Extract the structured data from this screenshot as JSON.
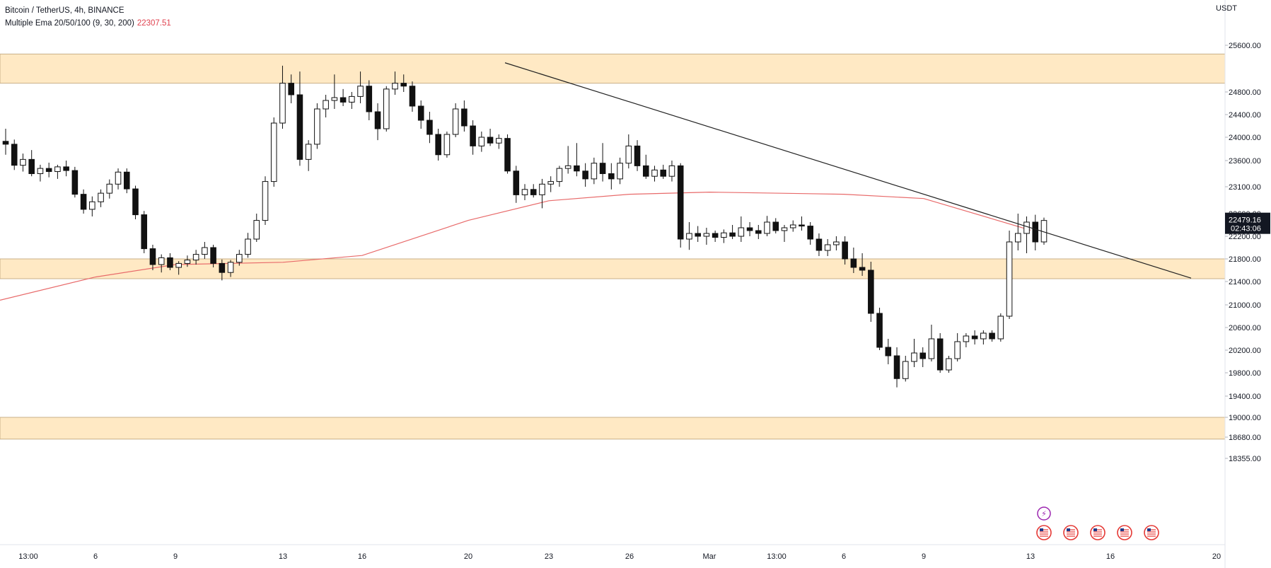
{
  "legend": {
    "symbol": "Bitcoin / TetherUS, 4h, BINANCE",
    "indicator": "Multiple Ema 20/50/100 (9, 30, 200)",
    "indicator_value": "22307.51"
  },
  "price_axis": {
    "unit": "USDT",
    "ticks": [
      "25600.00",
      "24800.00",
      "24400.00",
      "24000.00",
      "23600.00",
      "23100.00",
      "22600.00",
      "22200.00",
      "21800.00",
      "21400.00",
      "21000.00",
      "20600.00",
      "20200.00",
      "19800.00",
      "19400.00",
      "19000.00",
      "18680.00",
      "18355.00"
    ],
    "last_price": "22479.16",
    "countdown": "02:43:06"
  },
  "time_axis": {
    "labels": [
      "13:00",
      "6",
      "9",
      "13",
      "16",
      "20",
      "23",
      "26",
      "Mar",
      "13:00",
      "6",
      "9",
      "13",
      "16",
      "20"
    ]
  },
  "colors": {
    "zone_fill": "#ffe9c4",
    "zone_border": "#c8b089",
    "ema": "#e86a6a",
    "candle": "#111111",
    "trendline": "#222222",
    "price_label_bg": "#131722"
  },
  "chart_data": {
    "type": "candlestick",
    "title": "Bitcoin / TetherUS, 4h, BINANCE",
    "y_range": [
      18355,
      25600
    ],
    "zones": [
      {
        "low": 24950,
        "high": 25450
      },
      {
        "low": 21450,
        "high": 21800
      },
      {
        "low": 18650,
        "high": 19000
      }
    ],
    "trendline": {
      "from": {
        "date": "Feb 21",
        "price": 25300
      },
      "to": {
        "date": "Mar 19",
        "price": 21460
      }
    },
    "ema_200": [
      {
        "date": "Feb 3",
        "price": 21080
      },
      {
        "date": "Feb 6",
        "price": 21480
      },
      {
        "date": "Feb 9",
        "price": 21700
      },
      {
        "date": "Feb 13",
        "price": 21740
      },
      {
        "date": "Feb 16",
        "price": 21860
      },
      {
        "date": "Feb 20",
        "price": 22480
      },
      {
        "date": "Feb 23",
        "price": 22840
      },
      {
        "date": "Feb 26",
        "price": 22960
      },
      {
        "date": "Mar 1",
        "price": 23000
      },
      {
        "date": "Mar 6",
        "price": 22960
      },
      {
        "date": "Mar 9",
        "price": 22880
      },
      {
        "date": "Mar 13",
        "price": 22307.51
      }
    ],
    "candles": [
      {
        "o": 23930,
        "h": 24150,
        "l": 23700,
        "c": 23880
      },
      {
        "o": 23880,
        "h": 23960,
        "l": 23420,
        "c": 23510
      },
      {
        "o": 23510,
        "h": 23720,
        "l": 23390,
        "c": 23620
      },
      {
        "o": 23620,
        "h": 23780,
        "l": 23300,
        "c": 23350
      },
      {
        "o": 23350,
        "h": 23520,
        "l": 23200,
        "c": 23450
      },
      {
        "o": 23450,
        "h": 23560,
        "l": 23280,
        "c": 23390
      },
      {
        "o": 23390,
        "h": 23520,
        "l": 23250,
        "c": 23480
      },
      {
        "o": 23480,
        "h": 23600,
        "l": 23300,
        "c": 23410
      },
      {
        "o": 23410,
        "h": 23480,
        "l": 22900,
        "c": 22960
      },
      {
        "o": 22960,
        "h": 23050,
        "l": 22600,
        "c": 22680
      },
      {
        "o": 22680,
        "h": 22920,
        "l": 22550,
        "c": 22820
      },
      {
        "o": 22820,
        "h": 23050,
        "l": 22720,
        "c": 22980
      },
      {
        "o": 22980,
        "h": 23240,
        "l": 22880,
        "c": 23150
      },
      {
        "o": 23150,
        "h": 23450,
        "l": 23050,
        "c": 23380
      },
      {
        "o": 23380,
        "h": 23450,
        "l": 22980,
        "c": 23060
      },
      {
        "o": 23060,
        "h": 23120,
        "l": 22500,
        "c": 22580
      },
      {
        "o": 22580,
        "h": 22650,
        "l": 21900,
        "c": 21980
      },
      {
        "o": 21980,
        "h": 22050,
        "l": 21600,
        "c": 21700
      },
      {
        "o": 21700,
        "h": 21880,
        "l": 21560,
        "c": 21820
      },
      {
        "o": 21820,
        "h": 21900,
        "l": 21600,
        "c": 21650
      },
      {
        "o": 21650,
        "h": 21760,
        "l": 21520,
        "c": 21720
      },
      {
        "o": 21720,
        "h": 21860,
        "l": 21660,
        "c": 21780
      },
      {
        "o": 21780,
        "h": 21960,
        "l": 21700,
        "c": 21880
      },
      {
        "o": 21880,
        "h": 22100,
        "l": 21800,
        "c": 22000
      },
      {
        "o": 22000,
        "h": 22050,
        "l": 21650,
        "c": 21720
      },
      {
        "o": 21720,
        "h": 21790,
        "l": 21420,
        "c": 21560
      },
      {
        "o": 21560,
        "h": 21780,
        "l": 21480,
        "c": 21740
      },
      {
        "o": 21740,
        "h": 21960,
        "l": 21680,
        "c": 21880
      },
      {
        "o": 21880,
        "h": 22260,
        "l": 21820,
        "c": 22150
      },
      {
        "o": 22150,
        "h": 22600,
        "l": 22100,
        "c": 22480
      },
      {
        "o": 22480,
        "h": 23300,
        "l": 22400,
        "c": 23200
      },
      {
        "o": 23200,
        "h": 24350,
        "l": 23100,
        "c": 24250
      },
      {
        "o": 24250,
        "h": 25250,
        "l": 24150,
        "c": 24950
      },
      {
        "o": 24950,
        "h": 25100,
        "l": 24600,
        "c": 24750
      },
      {
        "o": 24750,
        "h": 25150,
        "l": 23500,
        "c": 23620
      },
      {
        "o": 23620,
        "h": 23950,
        "l": 23400,
        "c": 23880
      },
      {
        "o": 23880,
        "h": 24600,
        "l": 23800,
        "c": 24500
      },
      {
        "o": 24500,
        "h": 24750,
        "l": 24350,
        "c": 24650
      },
      {
        "o": 24650,
        "h": 25100,
        "l": 24500,
        "c": 24700
      },
      {
        "o": 24700,
        "h": 24850,
        "l": 24550,
        "c": 24620
      },
      {
        "o": 24620,
        "h": 24800,
        "l": 24500,
        "c": 24720
      },
      {
        "o": 24720,
        "h": 25150,
        "l": 24600,
        "c": 24900
      },
      {
        "o": 24900,
        "h": 25000,
        "l": 24300,
        "c": 24450
      },
      {
        "o": 24450,
        "h": 24600,
        "l": 23950,
        "c": 24150
      },
      {
        "o": 24150,
        "h": 24900,
        "l": 24100,
        "c": 24850
      },
      {
        "o": 24850,
        "h": 25150,
        "l": 24750,
        "c": 24950
      },
      {
        "o": 24950,
        "h": 25100,
        "l": 24800,
        "c": 24900
      },
      {
        "o": 24900,
        "h": 24980,
        "l": 24450,
        "c": 24550
      },
      {
        "o": 24550,
        "h": 24650,
        "l": 24150,
        "c": 24300
      },
      {
        "o": 24300,
        "h": 24450,
        "l": 23900,
        "c": 24050
      },
      {
        "o": 24050,
        "h": 24150,
        "l": 23600,
        "c": 23700
      },
      {
        "o": 23700,
        "h": 24100,
        "l": 23650,
        "c": 24050
      },
      {
        "o": 24050,
        "h": 24600,
        "l": 24000,
        "c": 24500
      },
      {
        "o": 24500,
        "h": 24650,
        "l": 24100,
        "c": 24200
      },
      {
        "o": 24200,
        "h": 24300,
        "l": 23700,
        "c": 23850
      },
      {
        "o": 23850,
        "h": 24100,
        "l": 23750,
        "c": 24000
      },
      {
        "o": 24000,
        "h": 24150,
        "l": 23850,
        "c": 23900
      },
      {
        "o": 23900,
        "h": 24050,
        "l": 23800,
        "c": 23980
      },
      {
        "o": 23980,
        "h": 24050,
        "l": 23350,
        "c": 23400
      },
      {
        "o": 23400,
        "h": 23500,
        "l": 22800,
        "c": 22950
      },
      {
        "o": 22950,
        "h": 23150,
        "l": 22850,
        "c": 23050
      },
      {
        "o": 23050,
        "h": 23150,
        "l": 22900,
        "c": 22950
      },
      {
        "o": 22950,
        "h": 23250,
        "l": 22700,
        "c": 23150
      },
      {
        "o": 23150,
        "h": 23300,
        "l": 23000,
        "c": 23200
      },
      {
        "o": 23200,
        "h": 23500,
        "l": 23100,
        "c": 23450
      },
      {
        "o": 23450,
        "h": 23850,
        "l": 23350,
        "c": 23500
      },
      {
        "o": 23500,
        "h": 23900,
        "l": 23300,
        "c": 23400
      },
      {
        "o": 23400,
        "h": 23550,
        "l": 23100,
        "c": 23250
      },
      {
        "o": 23250,
        "h": 23650,
        "l": 23150,
        "c": 23550
      },
      {
        "o": 23550,
        "h": 23900,
        "l": 23200,
        "c": 23350
      },
      {
        "o": 23350,
        "h": 23550,
        "l": 23050,
        "c": 23250
      },
      {
        "o": 23250,
        "h": 23650,
        "l": 23150,
        "c": 23550
      },
      {
        "o": 23550,
        "h": 24050,
        "l": 23450,
        "c": 23850
      },
      {
        "o": 23850,
        "h": 23950,
        "l": 23400,
        "c": 23500
      },
      {
        "o": 23500,
        "h": 23700,
        "l": 23250,
        "c": 23300
      },
      {
        "o": 23300,
        "h": 23500,
        "l": 23200,
        "c": 23420
      },
      {
        "o": 23420,
        "h": 23520,
        "l": 23250,
        "c": 23300
      },
      {
        "o": 23300,
        "h": 23600,
        "l": 23200,
        "c": 23500
      },
      {
        "o": 23500,
        "h": 23550,
        "l": 22000,
        "c": 22150
      },
      {
        "o": 22150,
        "h": 22450,
        "l": 21960,
        "c": 22250
      },
      {
        "o": 22250,
        "h": 22380,
        "l": 22100,
        "c": 22200
      },
      {
        "o": 22200,
        "h": 22350,
        "l": 22050,
        "c": 22250
      },
      {
        "o": 22250,
        "h": 22300,
        "l": 22100,
        "c": 22180
      },
      {
        "o": 22180,
        "h": 22320,
        "l": 22080,
        "c": 22260
      },
      {
        "o": 22260,
        "h": 22400,
        "l": 22150,
        "c": 22200
      },
      {
        "o": 22200,
        "h": 22550,
        "l": 22100,
        "c": 22350
      },
      {
        "o": 22350,
        "h": 22450,
        "l": 22200,
        "c": 22300
      },
      {
        "o": 22300,
        "h": 22400,
        "l": 22150,
        "c": 22250
      },
      {
        "o": 22250,
        "h": 22560,
        "l": 22200,
        "c": 22450
      },
      {
        "o": 22450,
        "h": 22520,
        "l": 22250,
        "c": 22300
      },
      {
        "o": 22300,
        "h": 22400,
        "l": 22100,
        "c": 22350
      },
      {
        "o": 22350,
        "h": 22480,
        "l": 22280,
        "c": 22400
      },
      {
        "o": 22400,
        "h": 22550,
        "l": 22300,
        "c": 22380
      },
      {
        "o": 22380,
        "h": 22450,
        "l": 22050,
        "c": 22150
      },
      {
        "o": 22150,
        "h": 22250,
        "l": 21850,
        "c": 21950
      },
      {
        "o": 21950,
        "h": 22150,
        "l": 21850,
        "c": 22050
      },
      {
        "o": 22050,
        "h": 22200,
        "l": 21950,
        "c": 22100
      },
      {
        "o": 22100,
        "h": 22200,
        "l": 21700,
        "c": 21800
      },
      {
        "o": 21800,
        "h": 22000,
        "l": 21550,
        "c": 21650
      },
      {
        "o": 21650,
        "h": 21900,
        "l": 21500,
        "c": 21600
      },
      {
        "o": 21600,
        "h": 21750,
        "l": 20700,
        "c": 20850
      },
      {
        "o": 20850,
        "h": 20950,
        "l": 20200,
        "c": 20250
      },
      {
        "o": 20250,
        "h": 20400,
        "l": 19950,
        "c": 20100
      },
      {
        "o": 20100,
        "h": 20250,
        "l": 19550,
        "c": 19700
      },
      {
        "o": 19700,
        "h": 20100,
        "l": 19650,
        "c": 20000
      },
      {
        "o": 20000,
        "h": 20400,
        "l": 19900,
        "c": 20150
      },
      {
        "o": 20150,
        "h": 20250,
        "l": 19900,
        "c": 20050
      },
      {
        "o": 20050,
        "h": 20650,
        "l": 20000,
        "c": 20400
      },
      {
        "o": 20400,
        "h": 20500,
        "l": 19800,
        "c": 19850
      },
      {
        "o": 19850,
        "h": 20100,
        "l": 19800,
        "c": 20050
      },
      {
        "o": 20050,
        "h": 20500,
        "l": 20000,
        "c": 20350
      },
      {
        "o": 20350,
        "h": 20500,
        "l": 20250,
        "c": 20450
      },
      {
        "o": 20450,
        "h": 20550,
        "l": 20300,
        "c": 20400
      },
      {
        "o": 20400,
        "h": 20550,
        "l": 20300,
        "c": 20500
      },
      {
        "o": 20500,
        "h": 20550,
        "l": 20350,
        "c": 20400
      },
      {
        "o": 20400,
        "h": 20850,
        "l": 20350,
        "c": 20800
      },
      {
        "o": 20800,
        "h": 22300,
        "l": 20750,
        "c": 22100
      },
      {
        "o": 22100,
        "h": 22600,
        "l": 21950,
        "c": 22250
      },
      {
        "o": 22250,
        "h": 22550,
        "l": 21900,
        "c": 22450
      },
      {
        "o": 22450,
        "h": 22580,
        "l": 21950,
        "c": 22100
      },
      {
        "o": 22100,
        "h": 22530,
        "l": 22050,
        "c": 22479.16
      }
    ]
  },
  "events": {
    "top_badge": "⚡",
    "flags": [
      "US",
      "US",
      "US",
      "US",
      "US"
    ]
  }
}
